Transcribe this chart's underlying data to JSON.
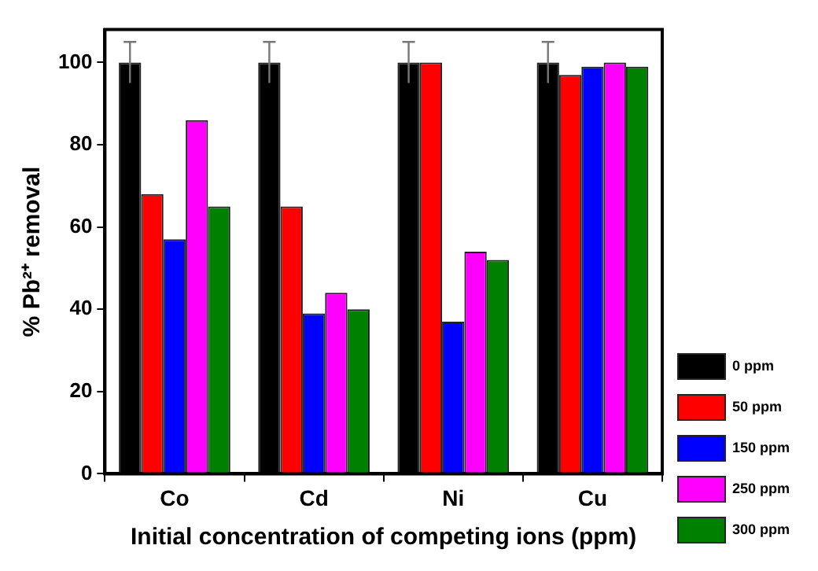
{
  "chart_data": {
    "type": "bar",
    "xlabel": "Initial concentration of competing ions (ppm)",
    "ylabel": "% Pb²⁺ removal",
    "categories": [
      "Co",
      "Cd",
      "Ni",
      "Cu"
    ],
    "series": [
      {
        "name": "0 ppm",
        "color": "#000000",
        "values": [
          100,
          100,
          100,
          100
        ],
        "errors": [
          5,
          5,
          5,
          5
        ]
      },
      {
        "name": "50 ppm",
        "color": "#ff0000",
        "values": [
          68,
          65,
          100,
          97
        ]
      },
      {
        "name": "150 ppm",
        "color": "#0000ff",
        "values": [
          57,
          39,
          37,
          99
        ]
      },
      {
        "name": "250 ppm",
        "color": "#ff00ff",
        "values": [
          86,
          44,
          54,
          100
        ]
      },
      {
        "name": "300 ppm",
        "color": "#008000",
        "values": [
          65,
          40,
          52,
          99
        ]
      }
    ],
    "ylim": [
      0,
      108
    ],
    "yticks": [
      0,
      20,
      40,
      60,
      80,
      100
    ],
    "grid": false,
    "legend": "bottom right"
  }
}
